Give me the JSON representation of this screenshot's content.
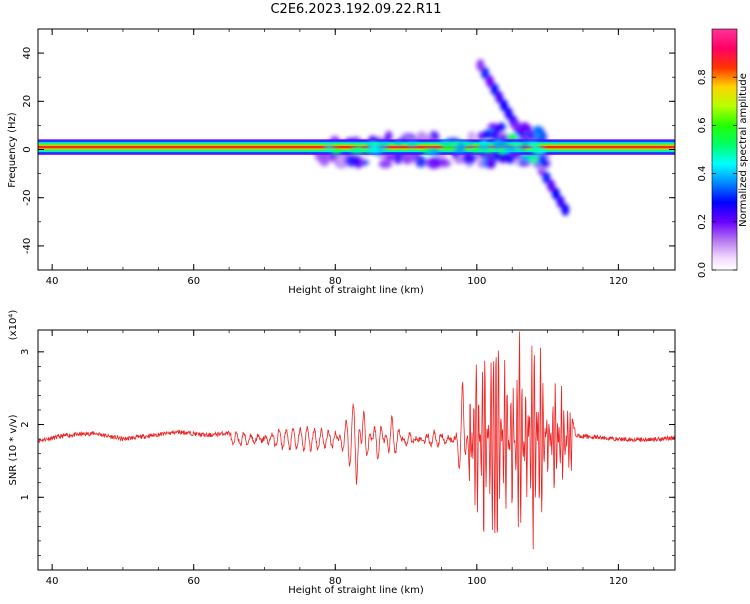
{
  "title": "C2E6.2023.192.09.22.R11",
  "colors": {
    "snr_line": "#ee2222",
    "spectrogram_background": "#ffffff",
    "axis": "#000000"
  },
  "colormap": "gist_ncar (white → purple → blue → cyan → green → yellow → red → pink)",
  "chart_data": [
    {
      "type": "heatmap",
      "name": "spectrogram",
      "xlabel": "Height of straight line (km)",
      "ylabel": "Frequency (Hz)",
      "xlim": [
        38,
        128
      ],
      "ylim": [
        -50,
        50
      ],
      "xticks": [
        40,
        60,
        80,
        100,
        120
      ],
      "xtick_labels": [
        "40",
        "60",
        "80",
        "100",
        "120"
      ],
      "yticks": [
        -40,
        -20,
        0,
        20,
        40
      ],
      "ytick_labels": [
        "-40",
        "-20",
        "0",
        "20",
        "40"
      ],
      "colorbar": {
        "label": "Normalized spectral amplitude",
        "range": [
          0,
          1
        ],
        "ticks": [
          0.0,
          0.2,
          0.4,
          0.6,
          0.8
        ],
        "tick_labels": [
          "0.0",
          "0.2",
          "0.4",
          "0.6",
          "0.8"
        ]
      },
      "features": {
        "main_band": {
          "x_range": [
            38,
            128
          ],
          "freq_center": 1,
          "freq_halfwidth": 3,
          "amplitude": 0.9
        },
        "noisy_region": {
          "x_range": [
            78,
            110
          ],
          "amplitude": 0.5
        },
        "chirp_streak": {
          "x_start": 100.5,
          "freq_start": 35,
          "x_end": 112.5,
          "freq_end": -25,
          "amplitude": 0.3
        },
        "bright_blobs": [
          {
            "x": 105,
            "freq": 5,
            "amplitude": 0.55
          },
          {
            "x": 107,
            "freq": -1,
            "amplitude": 0.6
          },
          {
            "x": 108,
            "freq": -4,
            "amplitude": 0.5
          }
        ]
      }
    },
    {
      "type": "line",
      "name": "snr",
      "xlabel": "Height of straight line (km)",
      "ylabel": "SNR (10 * v/v)",
      "multiplier_label": "(x10⁴)",
      "xlim": [
        38,
        128
      ],
      "ylim": [
        0,
        3.3
      ],
      "xticks": [
        40,
        60,
        80,
        100,
        120
      ],
      "xtick_labels": [
        "40",
        "60",
        "80",
        "100",
        "120"
      ],
      "yticks": [
        1,
        2,
        3
      ],
      "ytick_labels": [
        "1",
        "2",
        "3"
      ],
      "baseline": 1.8,
      "series_points": [
        [
          38,
          1.78
        ],
        [
          42,
          1.85
        ],
        [
          46,
          1.88
        ],
        [
          50,
          1.8
        ],
        [
          54,
          1.85
        ],
        [
          58,
          1.9
        ],
        [
          62,
          1.85
        ],
        [
          66,
          1.9
        ],
        [
          70,
          1.82
        ],
        [
          72,
          1.92
        ],
        [
          76,
          1.95
        ],
        [
          80,
          1.9
        ],
        [
          83,
          1.2
        ],
        [
          84,
          2.2
        ],
        [
          86,
          1.5
        ],
        [
          88,
          2.1
        ],
        [
          90,
          1.7
        ],
        [
          94,
          1.9
        ],
        [
          97,
          1.8
        ],
        [
          98,
          2.6
        ],
        [
          99,
          1.2
        ],
        [
          100,
          3.1
        ],
        [
          101,
          0.3
        ],
        [
          102,
          2.9
        ],
        [
          103,
          3.2
        ],
        [
          104,
          0.6
        ],
        [
          105,
          2.8
        ],
        [
          106,
          0.1
        ],
        [
          107,
          2.7
        ],
        [
          108,
          0.05
        ],
        [
          109,
          3.2
        ],
        [
          110,
          1.3
        ],
        [
          111,
          2.6
        ],
        [
          112,
          1.1
        ],
        [
          113,
          2.3
        ],
        [
          114,
          1.85
        ],
        [
          116,
          1.83
        ],
        [
          120,
          1.8
        ],
        [
          124,
          1.79
        ],
        [
          128,
          1.82
        ]
      ]
    }
  ]
}
